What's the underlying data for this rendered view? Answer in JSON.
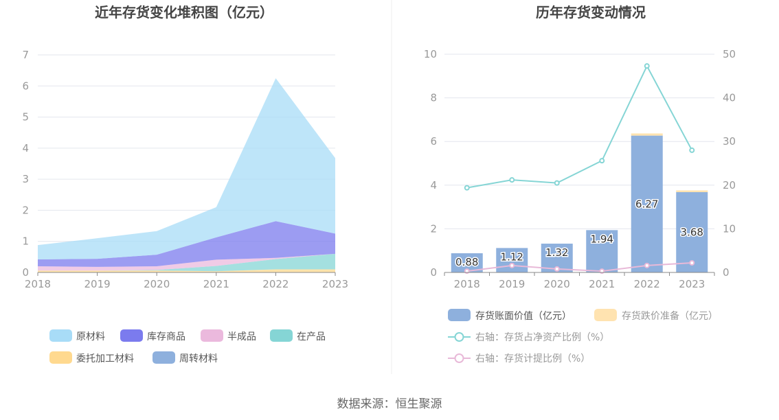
{
  "source_label": "数据来源：恒生聚源",
  "chart_data": [
    {
      "type": "area",
      "stacked": true,
      "title": "近年存货变化堆积图（亿元）",
      "x": [
        "2018",
        "2019",
        "2020",
        "2021",
        "2022",
        "2023"
      ],
      "ylim": [
        0,
        7
      ],
      "yticks": [
        0,
        1,
        2,
        3,
        4,
        5,
        6,
        7
      ],
      "grid": true,
      "legend_position": "bottom",
      "series": [
        {
          "name": "周转材料",
          "color": "#8eb0dd",
          "values": [
            0,
            0,
            0,
            0,
            0,
            0
          ]
        },
        {
          "name": "委托加工材料",
          "color": "#ffd98f",
          "values": [
            0.06,
            0.06,
            0.06,
            0.04,
            0.1,
            0.1
          ]
        },
        {
          "name": "在产品",
          "color": "#85d5d5",
          "values": [
            0,
            0,
            0.02,
            0.17,
            0.33,
            0.5
          ]
        },
        {
          "name": "半成品",
          "color": "#ebb9dd",
          "values": [
            0.14,
            0.12,
            0.12,
            0.2,
            0.04,
            0
          ]
        },
        {
          "name": "库存商品",
          "color": "#7b7bee",
          "values": [
            0.22,
            0.26,
            0.37,
            0.72,
            1.18,
            0.65
          ]
        },
        {
          "name": "原材料",
          "color": "#a8dcf7",
          "values": [
            0.46,
            0.66,
            0.76,
            0.97,
            4.6,
            2.43
          ]
        }
      ],
      "legend_order": [
        "原材料",
        "库存商品",
        "半成品",
        "在产品",
        "委托加工材料",
        "周转材料"
      ]
    },
    {
      "type": "bar",
      "title": "历年存货变动情况",
      "categories": [
        "2018",
        "2019",
        "2020",
        "2021",
        "2022",
        "2023"
      ],
      "ylim": [
        0,
        10
      ],
      "yticks": [
        0,
        2,
        4,
        6,
        8,
        10
      ],
      "y2lim": [
        0,
        50
      ],
      "y2ticks": [
        0,
        10,
        20,
        30,
        40,
        50
      ],
      "grid": true,
      "legend_position": "bottom",
      "series": [
        {
          "name": "存货账面价值（亿元）",
          "type": "bar",
          "axis": "left",
          "color": "#8eb0dd",
          "values": [
            0.88,
            1.12,
            1.32,
            1.94,
            6.27,
            3.68
          ],
          "labels": [
            "0.88",
            "1.12",
            "1.32",
            "1.94",
            "6.27",
            "3.68"
          ]
        },
        {
          "name": "存货跌价准备（亿元）",
          "type": "bar",
          "axis": "left",
          "stacked": true,
          "color": "#ffe3b0",
          "values": [
            0,
            0,
            0,
            0,
            0.1,
            0.08
          ]
        },
        {
          "name": "右轴：存货占净资产比例（%）",
          "type": "line",
          "axis": "right",
          "color": "#85d5d5",
          "values": [
            19.4,
            21.2,
            20.5,
            25.6,
            47.3,
            28.0
          ]
        },
        {
          "name": "右轴：存货计提比例（%）",
          "type": "line",
          "axis": "right",
          "color": "#e8b9d8",
          "values": [
            0.3,
            1.6,
            0.8,
            0.3,
            1.6,
            2.2
          ]
        }
      ]
    }
  ]
}
